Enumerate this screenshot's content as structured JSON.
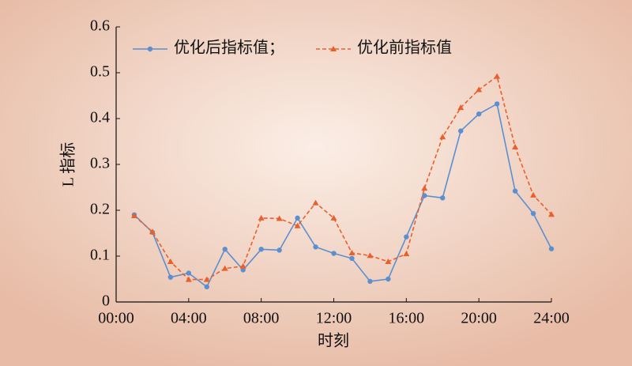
{
  "chart_data": {
    "type": "line",
    "x_label": "时刻",
    "y_label": "L 指标",
    "x": [
      1,
      2,
      3,
      4,
      5,
      6,
      7,
      8,
      9,
      10,
      11,
      12,
      13,
      14,
      15,
      16,
      17,
      18,
      19,
      20,
      21,
      22,
      23,
      24
    ],
    "series": [
      {
        "name": "优化后指标值；",
        "color": "#5b8fd0",
        "marker": "circle",
        "dashed": false,
        "values": [
          0.19,
          0.152,
          0.054,
          0.063,
          0.033,
          0.115,
          0.07,
          0.115,
          0.113,
          0.183,
          0.12,
          0.106,
          0.095,
          0.045,
          0.05,
          0.142,
          0.232,
          0.227,
          0.373,
          0.41,
          0.432,
          0.242,
          0.193,
          0.116
        ]
      },
      {
        "name": "优化前指标值",
        "color": "#e8602c",
        "marker": "triangle",
        "dashed": true,
        "values": [
          0.188,
          0.153,
          0.088,
          0.049,
          0.049,
          0.073,
          0.078,
          0.183,
          0.182,
          0.166,
          0.216,
          0.183,
          0.107,
          0.101,
          0.088,
          0.105,
          0.248,
          0.36,
          0.424,
          0.463,
          0.492,
          0.338,
          0.233,
          0.191
        ]
      }
    ],
    "xlim": [
      0,
      24
    ],
    "xticks": [
      {
        "value": 0,
        "label": "00:00"
      },
      {
        "value": 4,
        "label": "04:00"
      },
      {
        "value": 8,
        "label": "08:00"
      },
      {
        "value": 12,
        "label": "12:00"
      },
      {
        "value": 16,
        "label": "16:00"
      },
      {
        "value": 20,
        "label": "20:00"
      },
      {
        "value": 24,
        "label": "24:00"
      }
    ],
    "ylim": [
      0,
      0.6
    ],
    "yticks": [
      0,
      0.1,
      0.2,
      0.3,
      0.4,
      0.5,
      0.6
    ],
    "grid": false,
    "legend": "top-left"
  }
}
